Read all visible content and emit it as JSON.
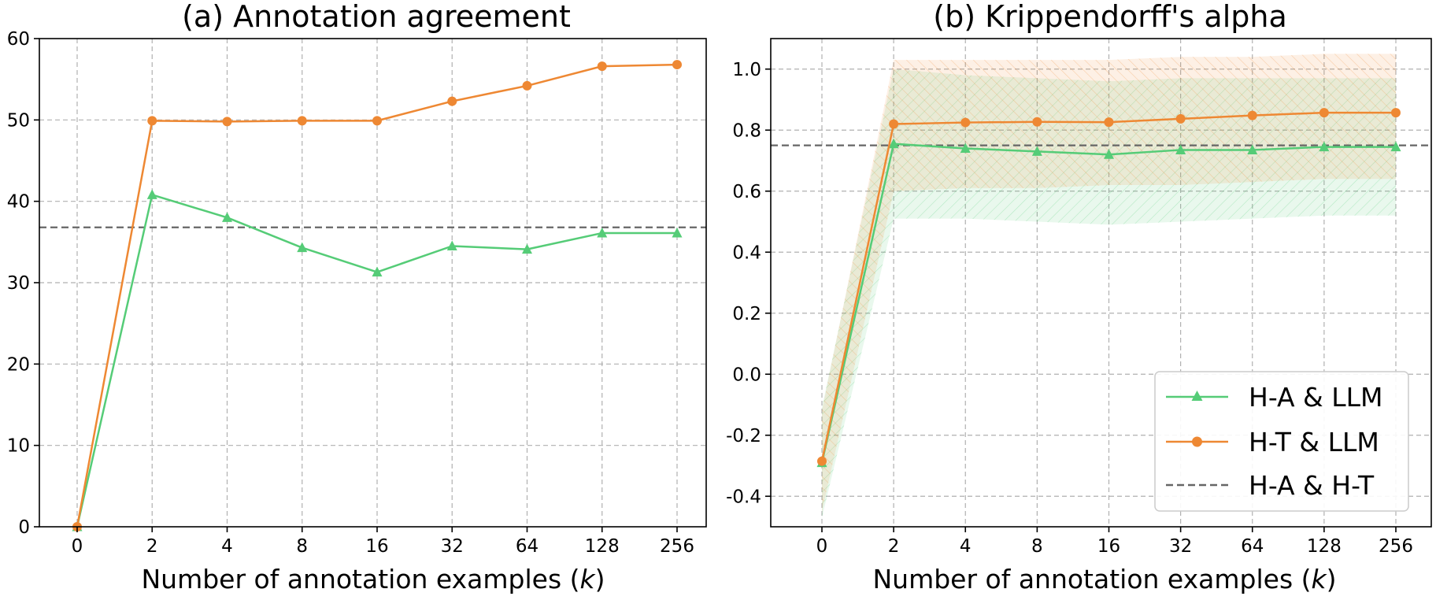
{
  "chart_data": [
    {
      "type": "line",
      "title": "(a) Annotation agreement",
      "xlabel": "Number of annotation examples (k)",
      "xlabel_main": "Number of annotation examples (",
      "xlabel_var": "k",
      "xlabel_end": ")",
      "ylabel": "",
      "categories": [
        "0",
        "2",
        "4",
        "8",
        "16",
        "32",
        "64",
        "128",
        "256"
      ],
      "ylim": [
        0,
        60
      ],
      "yticks": [
        0,
        10,
        20,
        30,
        40,
        50,
        60
      ],
      "ytick_labels": [
        "0",
        "10",
        "20",
        "30",
        "40",
        "50",
        "60"
      ],
      "grid": true,
      "series": [
        {
          "name": "H-A & LLM",
          "color": "#55cc77",
          "marker": "triangle",
          "values": [
            0,
            40.8,
            38.0,
            34.3,
            31.3,
            34.5,
            34.1,
            36.1,
            36.1
          ]
        },
        {
          "name": "H-T & LLM",
          "color": "#ee8833",
          "marker": "circle",
          "values": [
            0,
            49.9,
            49.8,
            49.9,
            49.9,
            52.3,
            54.2,
            56.6,
            56.8
          ]
        }
      ],
      "reference_lines": [
        {
          "name": "H-A & H-T",
          "color": "#666666",
          "value": 36.8
        }
      ]
    },
    {
      "type": "line",
      "title": "(b) Krippendorff's alpha",
      "xlabel": "Number of annotation examples (k)",
      "xlabel_main": "Number of annotation examples (",
      "xlabel_var": "k",
      "xlabel_end": ")",
      "ylabel": "",
      "categories": [
        "0",
        "2",
        "4",
        "8",
        "16",
        "32",
        "64",
        "128",
        "256"
      ],
      "ylim": [
        -0.5,
        1.1
      ],
      "yticks": [
        -0.4,
        -0.2,
        0.0,
        0.2,
        0.4,
        0.6,
        0.8,
        1.0
      ],
      "ytick_labels": [
        "-0.4",
        "-0.2",
        "0.0",
        "0.2",
        "0.4",
        "0.6",
        "0.8",
        "1.0"
      ],
      "grid": true,
      "series": [
        {
          "name": "H-A & LLM",
          "color": "#55cc77",
          "marker": "triangle",
          "values": [
            -0.29,
            0.755,
            0.74,
            0.73,
            0.72,
            0.735,
            0.735,
            0.745,
            0.745
          ],
          "band_low": [
            -0.47,
            0.51,
            0.51,
            0.5,
            0.49,
            0.5,
            0.51,
            0.52,
            0.52
          ],
          "band_high": [
            -0.11,
            1.0,
            0.98,
            0.97,
            0.96,
            0.97,
            0.97,
            0.97,
            0.97
          ]
        },
        {
          "name": "H-T & LLM",
          "color": "#ee8833",
          "marker": "circle",
          "values": [
            -0.285,
            0.82,
            0.825,
            0.827,
            0.826,
            0.837,
            0.848,
            0.857,
            0.857
          ],
          "band_low": [
            -0.45,
            0.6,
            0.61,
            0.61,
            0.62,
            0.62,
            0.63,
            0.64,
            0.64
          ],
          "band_high": [
            -0.12,
            1.03,
            1.03,
            1.03,
            1.03,
            1.04,
            1.04,
            1.05,
            1.05
          ]
        }
      ],
      "reference_lines": [
        {
          "name": "H-A & H-T",
          "color": "#666666",
          "value": 0.75
        }
      ],
      "legend": {
        "placement": "lower-right",
        "entries": [
          "H-A & LLM",
          "H-T & LLM",
          "H-A & H-T"
        ]
      }
    }
  ]
}
